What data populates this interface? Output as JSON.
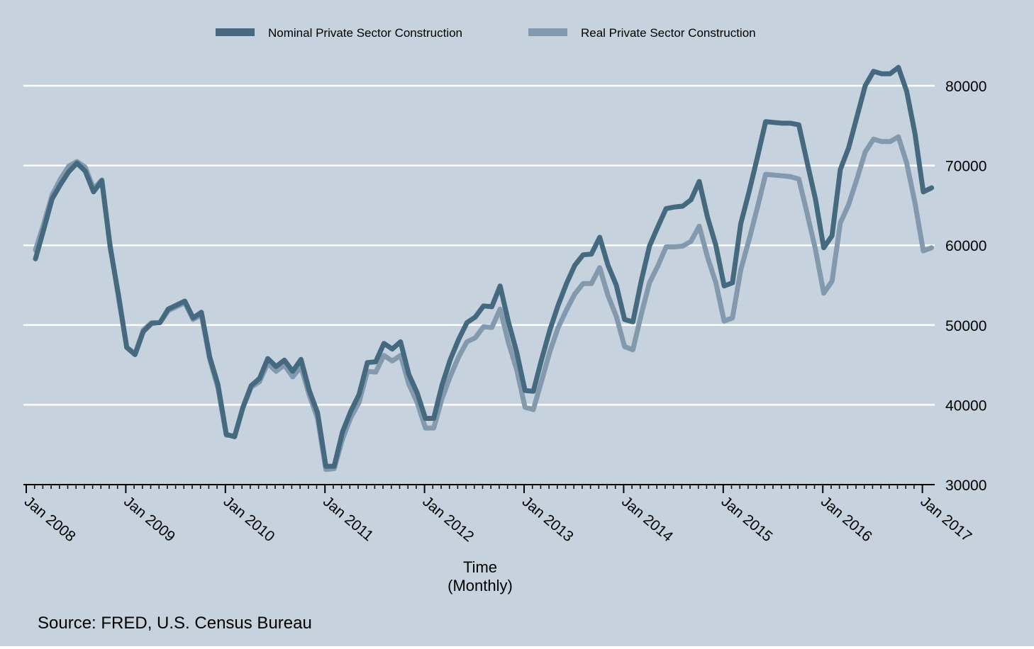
{
  "chart_data": {
    "type": "line",
    "xlabel_line1": "Time",
    "xlabel_line2": "(Monthly)",
    "ylabel": "",
    "source": "Source: FRED, U.S. Census Bureau",
    "ylim": [
      30000,
      83000
    ],
    "y_ticks": [
      "30000",
      "40000",
      "50000",
      "60000",
      "70000",
      "80000"
    ],
    "x_ticks": [
      "Jan 2008",
      "Jan 2009",
      "Jan 2010",
      "Jan 2011",
      "Jan 2012",
      "Jan 2013",
      "Jan 2014",
      "Jan 2015",
      "Jan 2016",
      "Jan 2017"
    ],
    "x_start": "2008-01",
    "grid": true,
    "legend_position": "top",
    "y_axis_side": "right",
    "background_color": "#c6d3df",
    "series": [
      {
        "name": "Nominal Private Sector Construction",
        "color": "#456a80",
        "values": [
          58300,
          62000,
          65800,
          67600,
          69200,
          70300,
          69300,
          66700,
          68100,
          59800,
          53800,
          47200,
          46300,
          49200,
          50200,
          50300,
          52000,
          52500,
          53000,
          50900,
          51600,
          46000,
          42500,
          36300,
          36000,
          39700,
          42400,
          43300,
          45800,
          44800,
          45600,
          44200,
          45700,
          41800,
          39000,
          32300,
          32300,
          36600,
          39200,
          41300,
          45300,
          45400,
          47700,
          47000,
          47900,
          43800,
          41500,
          38300,
          38300,
          42500,
          45700,
          48200,
          50300,
          51000,
          52400,
          52300,
          54900,
          50400,
          46600,
          41800,
          41700,
          45700,
          49400,
          52500,
          55200,
          57500,
          58800,
          58900,
          61000,
          57500,
          55000,
          50700,
          50400,
          55500,
          59900,
          62300,
          64600,
          64800,
          64900,
          65700,
          68000,
          63500,
          60000,
          54900,
          55300,
          62700,
          66700,
          71000,
          75500,
          75400,
          75300,
          75300,
          75100,
          70400,
          65800,
          59700,
          61200,
          69500,
          72200,
          76100,
          80000,
          81800,
          81500,
          81500,
          82300,
          79300,
          74000,
          66700,
          67200
        ]
      },
      {
        "name": "Real Private Sector Construction",
        "color": "#8299ae",
        "values": [
          59400,
          62700,
          66300,
          68300,
          69900,
          70500,
          69800,
          67100,
          68200,
          60000,
          53500,
          47200,
          46400,
          49400,
          50300,
          50300,
          51800,
          52300,
          52800,
          50700,
          51300,
          45700,
          42100,
          36200,
          36100,
          39600,
          42200,
          42900,
          45200,
          44200,
          45000,
          43500,
          44800,
          41200,
          38300,
          31900,
          32000,
          35700,
          38400,
          40300,
          44200,
          44100,
          46200,
          45500,
          46200,
          42600,
          40300,
          37100,
          37100,
          40800,
          43600,
          46000,
          47900,
          48400,
          49800,
          49700,
          52000,
          47800,
          44400,
          39700,
          39400,
          43000,
          46700,
          49700,
          51900,
          53900,
          55200,
          55200,
          57200,
          53700,
          51100,
          47300,
          46900,
          51300,
          55300,
          57400,
          59800,
          59800,
          59900,
          60500,
          62400,
          58500,
          55300,
          50500,
          50900,
          56900,
          60700,
          64700,
          68900,
          68800,
          68700,
          68600,
          68300,
          64000,
          59500,
          54000,
          55500,
          62800,
          65100,
          68300,
          71700,
          73300,
          73000,
          73000,
          73600,
          70300,
          65300,
          59300,
          59700
        ]
      }
    ]
  }
}
